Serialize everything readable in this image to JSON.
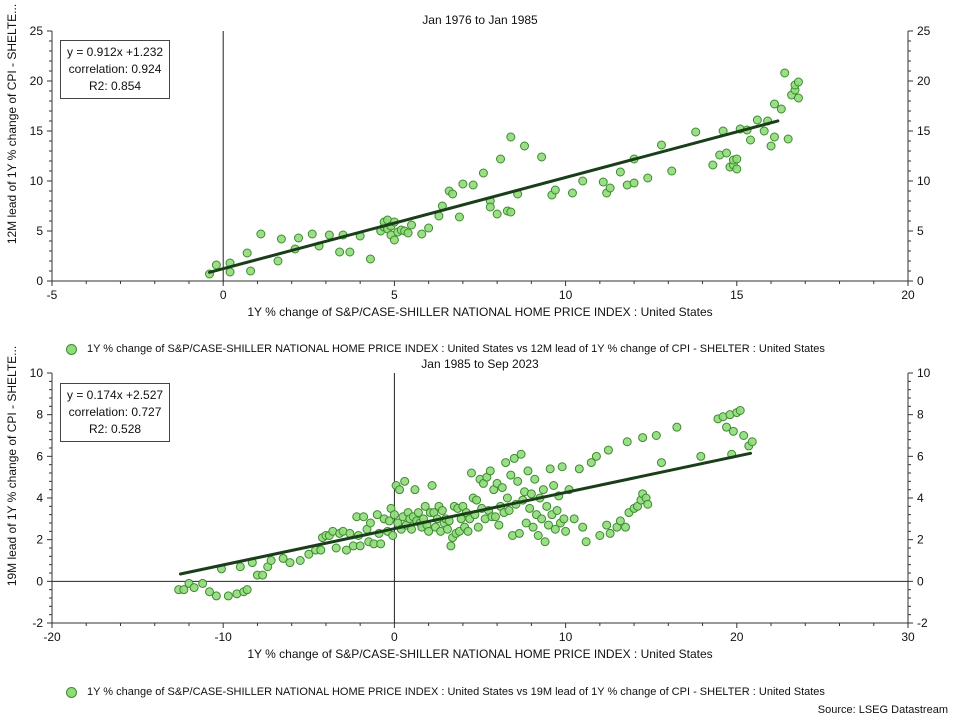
{
  "source": "Source: LSEG Datastream",
  "chart_data": [
    {
      "type": "scatter",
      "title": "Jan 1976 to Jan 1985",
      "xlabel": "1Y % change of S&P/CASE-SHILLER NATIONAL HOME PRICE INDEX : United States",
      "ylabel": "12M lead of 1Y % change of CPI - SHELTE...",
      "xlim": [
        -5,
        20
      ],
      "ylim": [
        0,
        25
      ],
      "xticks": [
        "-5",
        "0",
        "5",
        "10",
        "15",
        "20"
      ],
      "yticks": [
        "0",
        "5",
        "10",
        "15",
        "20",
        "25"
      ],
      "legend": "1Y % change of S&P/CASE-SHILLER NATIONAL HOME PRICE INDEX : United States vs 12M lead of 1Y % change of CPI - SHELTER : United States",
      "stats": [
        "y = 0.912x +1.232",
        "correlation: 0.924",
        "R2: 0.854"
      ],
      "fit": {
        "slope": 0.912,
        "intercept": 1.232,
        "x_range": [
          -0.4,
          16.2
        ]
      },
      "colors": {
        "marker_fill": "#8fdc7a",
        "marker_edge": "#3d8a2e",
        "fit_line": "#1a3d1a"
      },
      "points": [
        [
          -0.4,
          0.7
        ],
        [
          -0.2,
          1.6
        ],
        [
          0.2,
          0.9
        ],
        [
          0.2,
          1.8
        ],
        [
          0.8,
          1.0
        ],
        [
          0.7,
          2.8
        ],
        [
          1.1,
          4.7
        ],
        [
          1.6,
          2.0
        ],
        [
          1.7,
          4.2
        ],
        [
          2.1,
          3.2
        ],
        [
          2.2,
          4.3
        ],
        [
          2.6,
          4.7
        ],
        [
          2.8,
          3.5
        ],
        [
          3.1,
          4.6
        ],
        [
          3.5,
          4.6
        ],
        [
          3.4,
          2.9
        ],
        [
          3.7,
          2.9
        ],
        [
          4.0,
          4.5
        ],
        [
          4.3,
          2.2
        ],
        [
          4.6,
          5.0
        ],
        [
          4.7,
          5.4
        ],
        [
          4.7,
          5.9
        ],
        [
          4.8,
          6.1
        ],
        [
          4.8,
          5.2
        ],
        [
          4.9,
          4.6
        ],
        [
          4.9,
          5.5
        ],
        [
          5.0,
          4.1
        ],
        [
          5.0,
          5.9
        ],
        [
          5.1,
          4.9
        ],
        [
          5.2,
          5.1
        ],
        [
          5.3,
          5.0
        ],
        [
          5.4,
          4.8
        ],
        [
          5.5,
          5.6
        ],
        [
          5.8,
          4.7
        ],
        [
          6.0,
          5.3
        ],
        [
          6.3,
          6.5
        ],
        [
          6.4,
          7.5
        ],
        [
          6.6,
          9.0
        ],
        [
          6.7,
          8.7
        ],
        [
          6.9,
          6.4
        ],
        [
          7.0,
          9.7
        ],
        [
          7.3,
          9.6
        ],
        [
          7.6,
          10.8
        ],
        [
          7.8,
          8.0
        ],
        [
          7.8,
          7.4
        ],
        [
          8.0,
          6.7
        ],
        [
          8.1,
          12.2
        ],
        [
          8.3,
          7.0
        ],
        [
          8.4,
          6.9
        ],
        [
          8.6,
          8.7
        ],
        [
          8.4,
          14.4
        ],
        [
          8.8,
          13.5
        ],
        [
          9.3,
          12.4
        ],
        [
          9.6,
          8.6
        ],
        [
          9.7,
          9.1
        ],
        [
          10.2,
          8.8
        ],
        [
          10.5,
          10.0
        ],
        [
          11.1,
          9.9
        ],
        [
          11.2,
          8.8
        ],
        [
          11.3,
          9.3
        ],
        [
          11.6,
          10.9
        ],
        [
          11.8,
          9.6
        ],
        [
          12.0,
          9.8
        ],
        [
          12.0,
          12.2
        ],
        [
          12.4,
          10.3
        ],
        [
          12.8,
          13.6
        ],
        [
          13.1,
          11.0
        ],
        [
          13.8,
          14.9
        ],
        [
          14.3,
          11.6
        ],
        [
          14.5,
          12.6
        ],
        [
          14.6,
          15.0
        ],
        [
          14.7,
          12.8
        ],
        [
          14.8,
          11.4
        ],
        [
          14.9,
          11.6
        ],
        [
          14.9,
          12.1
        ],
        [
          15.0,
          12.2
        ],
        [
          15.0,
          11.2
        ],
        [
          15.1,
          15.2
        ],
        [
          15.3,
          15.1
        ],
        [
          15.4,
          14.1
        ],
        [
          15.6,
          16.1
        ],
        [
          15.8,
          15.0
        ],
        [
          15.9,
          16.0
        ],
        [
          16.0,
          13.5
        ],
        [
          16.1,
          17.7
        ],
        [
          16.1,
          14.4
        ],
        [
          16.3,
          17.2
        ],
        [
          16.4,
          20.8
        ],
        [
          16.5,
          14.2
        ],
        [
          16.6,
          18.6
        ],
        [
          16.7,
          19.1
        ],
        [
          16.7,
          19.6
        ],
        [
          16.8,
          19.9
        ],
        [
          16.8,
          18.3
        ]
      ]
    },
    {
      "type": "scatter",
      "title": "Jan 1985 to Sep 2023",
      "xlabel": "1Y % change of S&P/CASE-SHILLER NATIONAL HOME PRICE INDEX : United States",
      "ylabel": "19M lead of 1Y % change of CPI - SHELTE...",
      "xlim": [
        -20,
        30
      ],
      "ylim": [
        -2,
        10
      ],
      "xticks": [
        "-20",
        "-10",
        "0",
        "10",
        "20",
        "30"
      ],
      "yticks": [
        "-2",
        "0",
        "2",
        "4",
        "6",
        "8",
        "10"
      ],
      "legend": "1Y % change of S&P/CASE-SHILLER NATIONAL HOME PRICE INDEX : United States vs 19M lead of 1Y % change of CPI - SHELTER : United States",
      "stats": [
        "y = 0.174x +2.527",
        "correlation: 0.727",
        "R2: 0.528"
      ],
      "fit": {
        "slope": 0.174,
        "intercept": 2.527,
        "x_range": [
          -12.5,
          20.8
        ]
      },
      "colors": {
        "marker_fill": "#8fdc7a",
        "marker_edge": "#3d8a2e",
        "fit_line": "#1a3d1a"
      },
      "points": [
        [
          -12.6,
          -0.4
        ],
        [
          -12.3,
          -0.4
        ],
        [
          -12.0,
          -0.1
        ],
        [
          -11.7,
          -0.3
        ],
        [
          -11.2,
          -0.1
        ],
        [
          -10.8,
          -0.5
        ],
        [
          -10.4,
          -0.7
        ],
        [
          -10.1,
          0.6
        ],
        [
          -9.7,
          -0.7
        ],
        [
          -9.2,
          -0.6
        ],
        [
          -9.0,
          0.7
        ],
        [
          -8.8,
          -0.5
        ],
        [
          -8.6,
          -0.4
        ],
        [
          -8.3,
          0.9
        ],
        [
          -8.0,
          0.3
        ],
        [
          -7.7,
          0.3
        ],
        [
          -7.4,
          0.7
        ],
        [
          -7.2,
          1.0
        ],
        [
          -6.5,
          1.1
        ],
        [
          -6.1,
          0.9
        ],
        [
          -5.5,
          1.0
        ],
        [
          -5.0,
          1.3
        ],
        [
          -4.6,
          1.5
        ],
        [
          -4.3,
          1.5
        ],
        [
          -4.2,
          2.1
        ],
        [
          -4.0,
          2.2
        ],
        [
          -3.8,
          2.2
        ],
        [
          -3.6,
          2.4
        ],
        [
          -3.4,
          1.6
        ],
        [
          -3.2,
          2.3
        ],
        [
          -3.0,
          2.4
        ],
        [
          -2.8,
          1.5
        ],
        [
          -2.6,
          2.3
        ],
        [
          -2.4,
          1.7
        ],
        [
          -2.2,
          3.1
        ],
        [
          -2.1,
          2.2
        ],
        [
          -2.0,
          1.7
        ],
        [
          -1.8,
          3.1
        ],
        [
          -1.6,
          2.5
        ],
        [
          -1.5,
          1.9
        ],
        [
          -1.4,
          2.8
        ],
        [
          -1.2,
          1.8
        ],
        [
          -1.0,
          3.2
        ],
        [
          -0.9,
          2.3
        ],
        [
          -0.8,
          1.8
        ],
        [
          -0.6,
          3.0
        ],
        [
          -0.4,
          2.4
        ],
        [
          -0.3,
          2.9
        ],
        [
          -0.2,
          3.5
        ],
        [
          -0.1,
          2.2
        ],
        [
          0.0,
          3.2
        ],
        [
          0.1,
          4.6
        ],
        [
          0.2,
          2.8
        ],
        [
          0.3,
          4.4
        ],
        [
          0.4,
          2.5
        ],
        [
          0.5,
          3.1
        ],
        [
          0.6,
          4.8
        ],
        [
          0.7,
          2.7
        ],
        [
          0.8,
          3.3
        ],
        [
          0.9,
          3.0
        ],
        [
          1.0,
          2.5
        ],
        [
          1.1,
          3.1
        ],
        [
          1.2,
          4.4
        ],
        [
          1.3,
          2.9
        ],
        [
          1.4,
          3.3
        ],
        [
          1.5,
          2.8
        ],
        [
          1.6,
          2.6
        ],
        [
          1.7,
          3.0
        ],
        [
          1.8,
          3.6
        ],
        [
          1.9,
          2.7
        ],
        [
          2.0,
          2.4
        ],
        [
          2.1,
          3.3
        ],
        [
          2.2,
          4.6
        ],
        [
          2.3,
          3.3
        ],
        [
          2.4,
          2.6
        ],
        [
          2.5,
          3.0
        ],
        [
          2.6,
          3.6
        ],
        [
          2.7,
          2.4
        ],
        [
          2.8,
          3.4
        ],
        [
          2.9,
          2.8
        ],
        [
          3.0,
          3.0
        ],
        [
          3.1,
          2.5
        ],
        [
          3.2,
          2.9
        ],
        [
          3.3,
          1.7
        ],
        [
          3.4,
          2.1
        ],
        [
          3.5,
          3.6
        ],
        [
          3.6,
          2.3
        ],
        [
          3.7,
          3.5
        ],
        [
          3.8,
          2.4
        ],
        [
          3.9,
          3.0
        ],
        [
          4.0,
          3.6
        ],
        [
          4.1,
          2.6
        ],
        [
          4.2,
          3.3
        ],
        [
          4.3,
          2.4
        ],
        [
          4.4,
          3.0
        ],
        [
          4.5,
          5.2
        ],
        [
          4.6,
          4.0
        ],
        [
          4.7,
          3.2
        ],
        [
          4.8,
          3.9
        ],
        [
          4.9,
          2.6
        ],
        [
          5.0,
          4.9
        ],
        [
          5.1,
          3.5
        ],
        [
          5.2,
          4.7
        ],
        [
          5.3,
          3.0
        ],
        [
          5.4,
          5.0
        ],
        [
          5.5,
          3.4
        ],
        [
          5.6,
          5.3
        ],
        [
          5.7,
          3.1
        ],
        [
          5.8,
          4.4
        ],
        [
          5.9,
          3.1
        ],
        [
          6.0,
          4.7
        ],
        [
          6.1,
          2.7
        ],
        [
          6.2,
          3.6
        ],
        [
          6.3,
          4.5
        ],
        [
          6.4,
          3.3
        ],
        [
          6.5,
          5.7
        ],
        [
          6.6,
          4.0
        ],
        [
          6.7,
          3.4
        ],
        [
          6.8,
          5.1
        ],
        [
          6.9,
          2.2
        ],
        [
          7.0,
          5.9
        ],
        [
          7.1,
          3.7
        ],
        [
          7.2,
          4.8
        ],
        [
          7.3,
          2.3
        ],
        [
          7.4,
          6.1
        ],
        [
          7.5,
          3.9
        ],
        [
          7.6,
          4.3
        ],
        [
          7.7,
          2.8
        ],
        [
          7.8,
          5.3
        ],
        [
          7.9,
          3.5
        ],
        [
          8.0,
          4.2
        ],
        [
          8.1,
          2.6
        ],
        [
          8.2,
          4.9
        ],
        [
          8.3,
          3.2
        ],
        [
          8.4,
          2.2
        ],
        [
          8.5,
          4.0
        ],
        [
          8.6,
          3.0
        ],
        [
          8.7,
          4.4
        ],
        [
          8.8,
          1.9
        ],
        [
          8.9,
          3.6
        ],
        [
          9.0,
          2.7
        ],
        [
          9.1,
          5.4
        ],
        [
          9.2,
          3.2
        ],
        [
          9.3,
          4.6
        ],
        [
          9.4,
          2.5
        ],
        [
          9.5,
          3.4
        ],
        [
          9.6,
          4.1
        ],
        [
          9.7,
          2.8
        ],
        [
          9.8,
          5.5
        ],
        [
          9.9,
          3.0
        ],
        [
          10.0,
          2.4
        ],
        [
          10.2,
          4.4
        ],
        [
          10.5,
          3.0
        ],
        [
          10.8,
          5.4
        ],
        [
          11.0,
          2.6
        ],
        [
          11.2,
          1.9
        ],
        [
          11.5,
          5.7
        ],
        [
          12.0,
          2.2
        ],
        [
          12.4,
          2.7
        ],
        [
          12.6,
          2.3
        ],
        [
          13.0,
          2.6
        ],
        [
          13.2,
          2.9
        ],
        [
          13.5,
          2.6
        ],
        [
          13.7,
          3.3
        ],
        [
          14.0,
          3.5
        ],
        [
          14.2,
          3.6
        ],
        [
          14.4,
          3.9
        ],
        [
          14.5,
          4.2
        ],
        [
          14.7,
          4.0
        ],
        [
          14.8,
          3.7
        ],
        [
          11.8,
          6.0
        ],
        [
          12.5,
          6.3
        ],
        [
          13.6,
          6.7
        ],
        [
          14.5,
          6.9
        ],
        [
          15.3,
          7.0
        ],
        [
          15.6,
          5.7
        ],
        [
          16.5,
          7.4
        ],
        [
          17.9,
          6.0
        ],
        [
          18.9,
          7.8
        ],
        [
          19.2,
          7.9
        ],
        [
          19.4,
          7.4
        ],
        [
          19.6,
          8.0
        ],
        [
          19.8,
          7.2
        ],
        [
          20.0,
          8.1
        ],
        [
          20.2,
          8.2
        ],
        [
          20.4,
          7.0
        ],
        [
          20.7,
          6.5
        ],
        [
          20.9,
          6.7
        ],
        [
          19.7,
          6.1
        ]
      ]
    }
  ]
}
